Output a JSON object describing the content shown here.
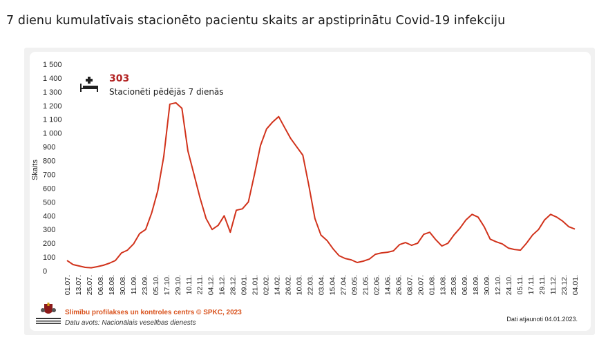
{
  "page_title": "7 dienu kumulatīvais stacionēto pacientu skaits ar apstiprinātu Covid-19 infekciju",
  "kpi": {
    "value": "303",
    "label": "Stacionēti pēdējās 7 dienās",
    "icon": "hospital-bed-icon"
  },
  "footer": {
    "credit": "Slimību profilakses un kontroles centrs © SPKC, 2023",
    "source": "Datu avots: Nacionālais veselības dienests",
    "updated": "Dati atjaunoti 04.01.2023.",
    "logo_text": "SLIMĪBU PROFILAKSES UN KONTROLES CENTRS"
  },
  "colors": {
    "line": "#d1321b",
    "accent_text": "#b22222",
    "credit": "#d9531e",
    "card": "#f1f1f1"
  },
  "chart_data": {
    "type": "line",
    "title": "",
    "ylabel": "Skaits",
    "xlabel": "",
    "ylim": [
      0,
      1500
    ],
    "y_ticks": [
      0,
      100,
      200,
      300,
      400,
      500,
      600,
      700,
      800,
      900,
      1000,
      1100,
      1200,
      1300,
      1400,
      1500
    ],
    "y_tick_labels": [
      "0",
      "100",
      "200",
      "300",
      "400",
      "500",
      "600",
      "700",
      "800",
      "900",
      "1 000",
      "1 100",
      "1 200",
      "1 300",
      "1 400",
      "1 500"
    ],
    "x_tick_labels": [
      "01.07.",
      "13.07.",
      "25.07.",
      "06.08.",
      "18.08.",
      "30.08.",
      "11.09.",
      "23.09.",
      "05.10.",
      "17.10.",
      "29.10.",
      "10.11.",
      "22.11.",
      "04.12.",
      "16.12.",
      "28.12.",
      "09.01.",
      "21.01.",
      "02.02.",
      "14.02.",
      "26.02.",
      "10.03.",
      "22.03.",
      "03.04.",
      "15.04.",
      "27.04.",
      "09.05.",
      "21.05.",
      "02.06.",
      "14.06.",
      "26.06.",
      "08.07.",
      "20.07.",
      "01.08.",
      "13.08.",
      "25.08.",
      "06.09.",
      "18.09.",
      "30.09.",
      "12.10.",
      "24.10.",
      "05.11.",
      "17.11.",
      "29.11.",
      "11.12.",
      "23.12.",
      "04.01."
    ],
    "grid": false,
    "legend": "none",
    "series": [
      {
        "name": "",
        "color": "#d1321b",
        "values": [
          75,
          45,
          35,
          25,
          22,
          30,
          40,
          55,
          75,
          130,
          150,
          195,
          270,
          300,
          420,
          580,
          830,
          1210,
          1220,
          1180,
          870,
          700,
          530,
          380,
          300,
          330,
          400,
          280,
          440,
          450,
          500,
          700,
          910,
          1030,
          1080,
          1120,
          1040,
          960,
          900,
          840,
          620,
          380,
          260,
          220,
          160,
          110,
          90,
          80,
          60,
          70,
          85,
          120,
          130,
          135,
          145,
          190,
          205,
          185,
          200,
          265,
          280,
          225,
          180,
          200,
          260,
          310,
          370,
          410,
          390,
          320,
          230,
          210,
          195,
          165,
          155,
          150,
          200,
          260,
          300,
          370,
          410,
          390,
          360,
          320,
          303
        ]
      }
    ]
  }
}
